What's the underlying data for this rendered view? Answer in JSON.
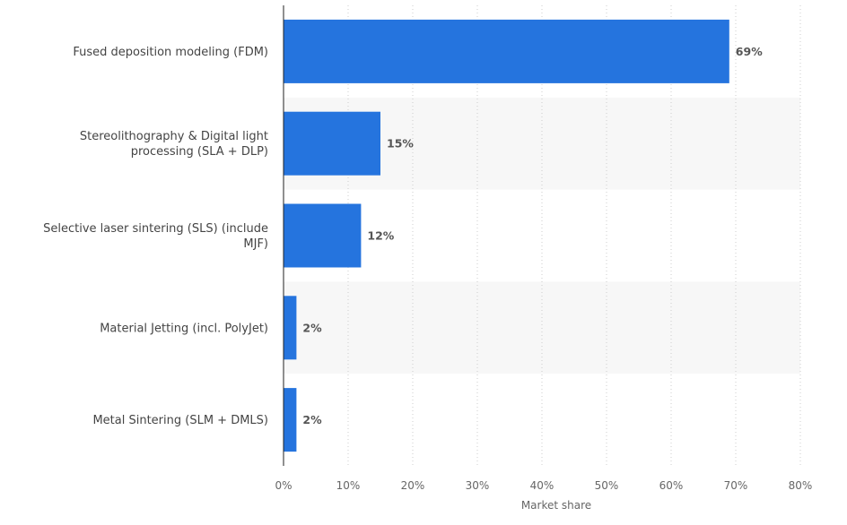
{
  "chart_data": {
    "type": "bar",
    "orientation": "horizontal",
    "categories": [
      [
        "Fused deposition modeling (FDM)"
      ],
      [
        "Stereolithography & Digital light",
        "processing (SLA + DLP)"
      ],
      [
        "Selective laser sintering (SLS) (include",
        "MJF)"
      ],
      [
        "Material Jetting (incl. PolyJet)"
      ],
      [
        "Metal Sintering (SLM + DMLS)"
      ]
    ],
    "values": [
      69,
      15,
      12,
      2,
      2
    ],
    "value_labels": [
      "69%",
      "15%",
      "12%",
      "2%",
      "2%"
    ],
    "x_ticks": [
      0,
      10,
      20,
      30,
      40,
      50,
      60,
      70,
      80
    ],
    "x_tick_labels": [
      "0%",
      "10%",
      "20%",
      "30%",
      "40%",
      "50%",
      "60%",
      "70%",
      "80%"
    ],
    "xlim": [
      0,
      80
    ],
    "xlabel": "Market share",
    "ylabel": "",
    "title": "",
    "grid": "vertical-dotted",
    "colors": {
      "bar": "#2574de",
      "band": "#f7f7f7",
      "grid": "#cccccc",
      "axis": "#222222"
    }
  }
}
